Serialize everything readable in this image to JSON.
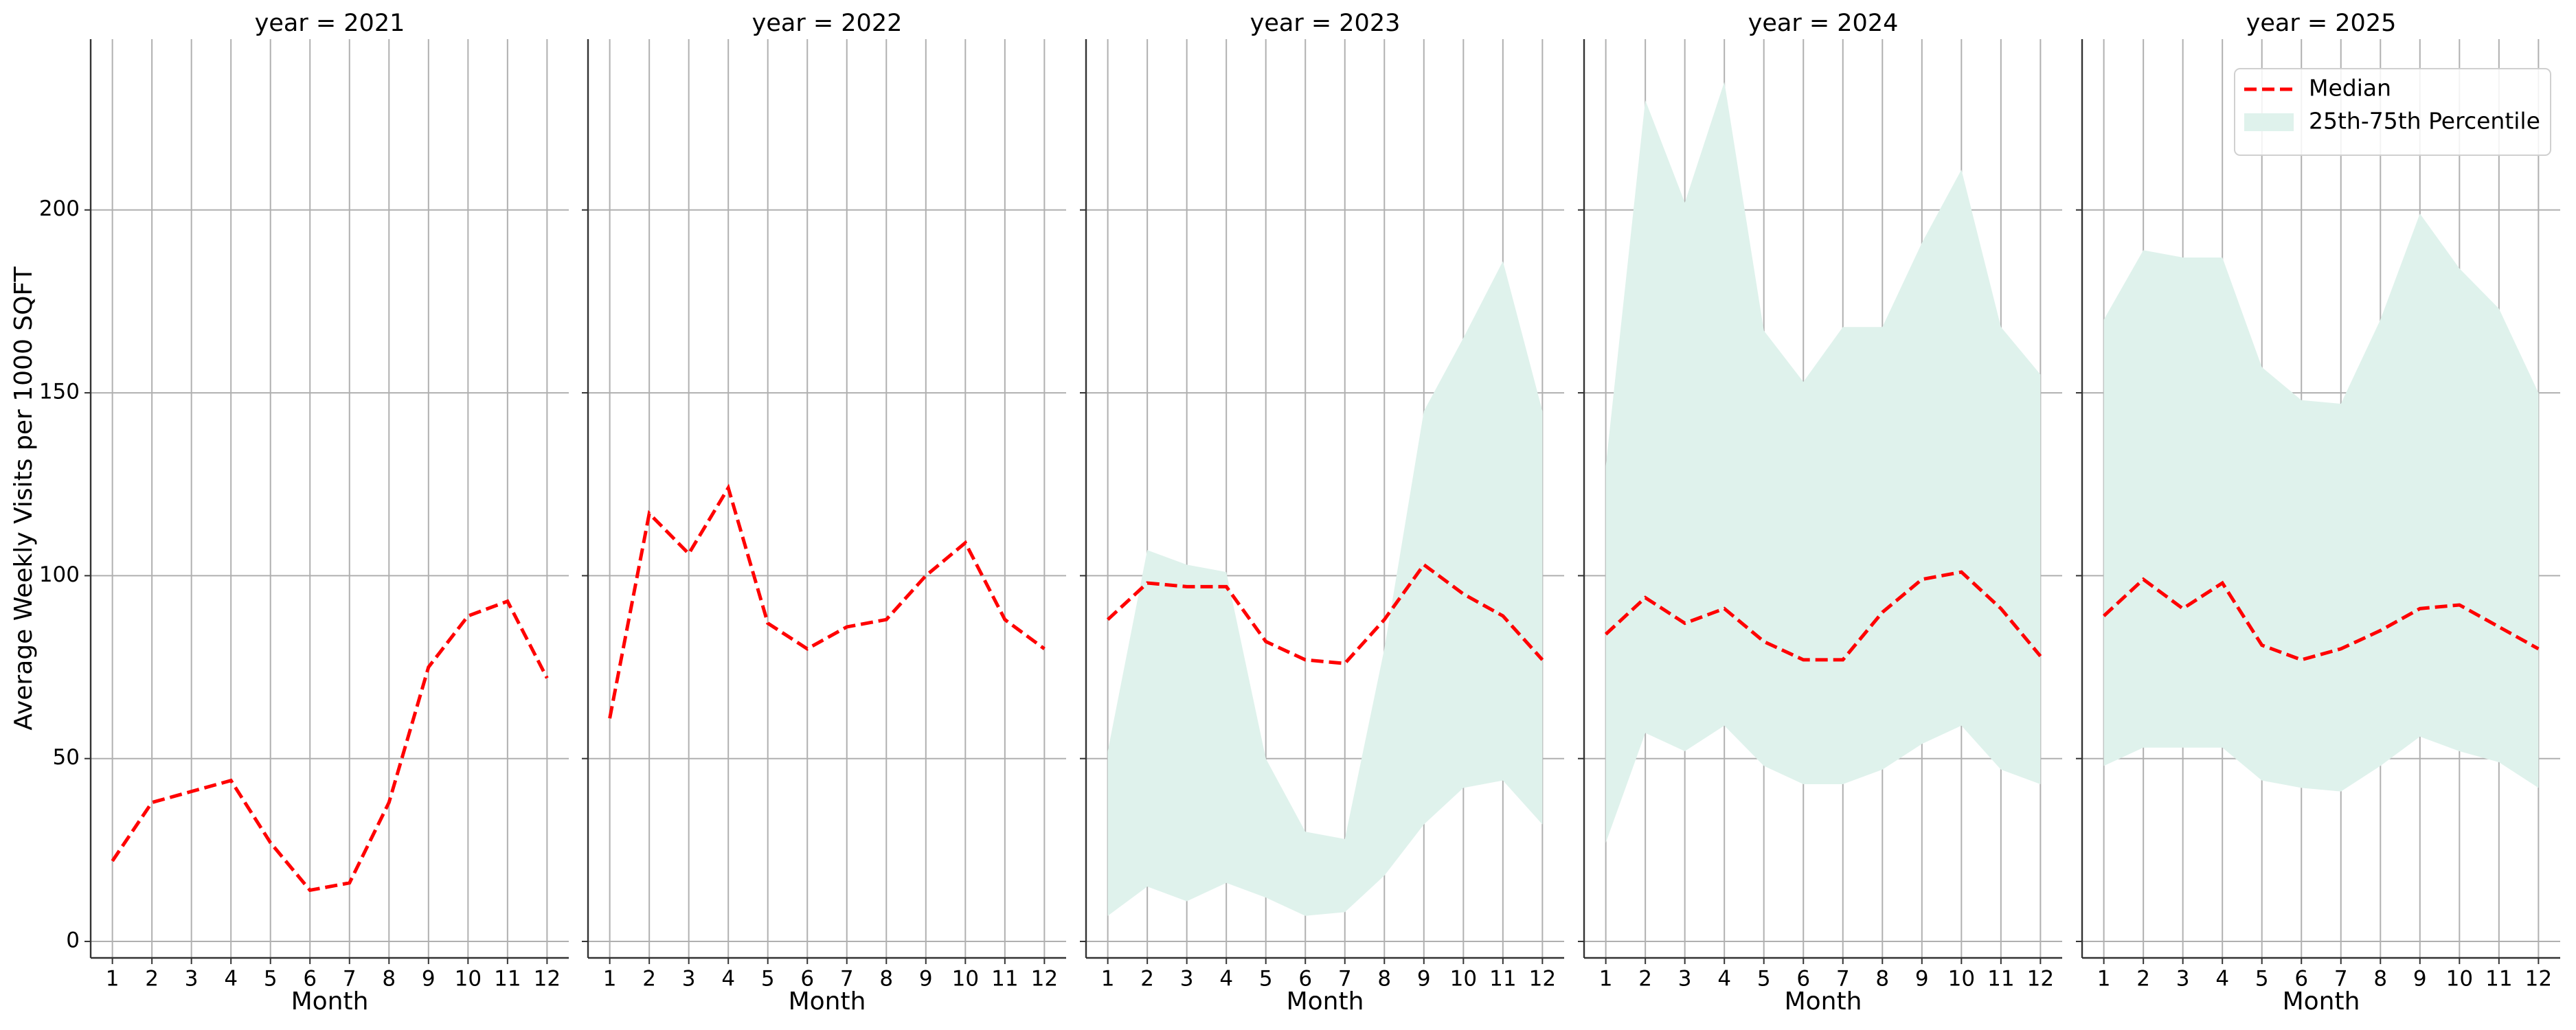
{
  "chart_data": [
    {
      "type": "line",
      "title": "year = 2021",
      "xlabel": "Month",
      "ylabel": "Average Weekly Visits per 1000 SQFT",
      "x": [
        1,
        2,
        3,
        4,
        5,
        6,
        7,
        8,
        9,
        10,
        11,
        12
      ],
      "xlim": [
        0.45,
        12.55
      ],
      "xticks": [
        1,
        2,
        3,
        4,
        5,
        6,
        7,
        8,
        9,
        10,
        11,
        12
      ],
      "ylim": [
        -4.5,
        246.7
      ],
      "yticks": [
        0,
        50,
        100,
        150,
        200
      ],
      "grid": true,
      "series": [
        {
          "color": "#ff0000",
          "values": [
            22,
            38,
            41,
            44,
            27,
            14,
            16,
            38,
            75,
            89,
            93,
            72
          ]
        }
      ]
    },
    {
      "type": "line",
      "title": "year = 2022",
      "xlabel": "Month",
      "x": [
        1,
        2,
        3,
        4,
        5,
        6,
        7,
        8,
        9,
        10,
        11,
        12
      ],
      "xlim": [
        0.45,
        12.55
      ],
      "xticks": [
        1,
        2,
        3,
        4,
        5,
        6,
        7,
        8,
        9,
        10,
        11,
        12
      ],
      "ylim": [
        -4.5,
        246.7
      ],
      "yticks": [
        0,
        50,
        100,
        150,
        200
      ],
      "grid": true,
      "series": [
        {
          "color": "#ff0000",
          "values": [
            61,
            117,
            106,
            124,
            87,
            80,
            86,
            88,
            100,
            109,
            88,
            80
          ]
        }
      ]
    },
    {
      "type": "line",
      "title": "year = 2023",
      "xlabel": "Month",
      "x": [
        1,
        2,
        3,
        4,
        5,
        6,
        7,
        8,
        9,
        10,
        11,
        12
      ],
      "xlim": [
        0.45,
        12.55
      ],
      "xticks": [
        1,
        2,
        3,
        4,
        5,
        6,
        7,
        8,
        9,
        10,
        11,
        12
      ],
      "ylim": [
        -4.5,
        246.7
      ],
      "yticks": [
        0,
        50,
        100,
        150,
        200
      ],
      "grid": true,
      "series": [
        {
          "color": "#ff0000",
          "values": [
            88,
            98,
            97,
            97,
            82,
            77,
            76,
            88,
            103,
            95,
            89,
            77
          ]
        }
      ],
      "bands": [
        {
          "color": "#dff2ec",
          "lower": [
            7,
            15,
            11,
            16,
            12,
            7,
            8,
            18,
            32,
            42,
            44,
            32
          ],
          "upper": [
            52,
            107,
            103,
            101,
            50,
            30,
            28,
            80,
            145,
            165,
            186,
            145
          ]
        }
      ]
    },
    {
      "type": "line",
      "title": "year = 2024",
      "xlabel": "Month",
      "x": [
        1,
        2,
        3,
        4,
        5,
        6,
        7,
        8,
        9,
        10,
        11,
        12
      ],
      "xlim": [
        0.45,
        12.55
      ],
      "xticks": [
        1,
        2,
        3,
        4,
        5,
        6,
        7,
        8,
        9,
        10,
        11,
        12
      ],
      "ylim": [
        -4.5,
        246.7
      ],
      "yticks": [
        0,
        50,
        100,
        150,
        200
      ],
      "grid": true,
      "series": [
        {
          "color": "#ff0000",
          "values": [
            84,
            94,
            87,
            91,
            82,
            77,
            77,
            90,
            99,
            101,
            91,
            78
          ]
        }
      ],
      "bands": [
        {
          "color": "#dff2ec",
          "lower": [
            27,
            57,
            52,
            59,
            48,
            43,
            43,
            47,
            54,
            59,
            47,
            43
          ],
          "upper": [
            130,
            230,
            202,
            235,
            167,
            153,
            168,
            168,
            191,
            211,
            168,
            155
          ]
        }
      ]
    },
    {
      "type": "line",
      "title": "year = 2025",
      "xlabel": "Month",
      "x": [
        1,
        2,
        3,
        4,
        5,
        6,
        7,
        8,
        9,
        10,
        11,
        12
      ],
      "xlim": [
        0.45,
        12.55
      ],
      "xticks": [
        1,
        2,
        3,
        4,
        5,
        6,
        7,
        8,
        9,
        10,
        11,
        12
      ],
      "ylim": [
        -4.5,
        246.7
      ],
      "yticks": [
        0,
        50,
        100,
        150,
        200
      ],
      "grid": true,
      "legend": "upper right",
      "series": [
        {
          "name": "Median",
          "color": "#ff0000",
          "values": [
            89,
            99,
            91,
            98,
            81,
            77,
            80,
            85,
            91,
            92,
            86,
            80
          ]
        }
      ],
      "bands": [
        {
          "name": "25th-75th Percentile",
          "color": "#dff2ec",
          "lower": [
            48,
            53,
            53,
            53,
            44,
            42,
            41,
            48,
            56,
            52,
            49,
            42
          ],
          "upper": [
            170,
            189,
            187,
            187,
            157,
            148,
            147,
            170,
            199,
            184,
            173,
            150
          ]
        }
      ]
    }
  ]
}
